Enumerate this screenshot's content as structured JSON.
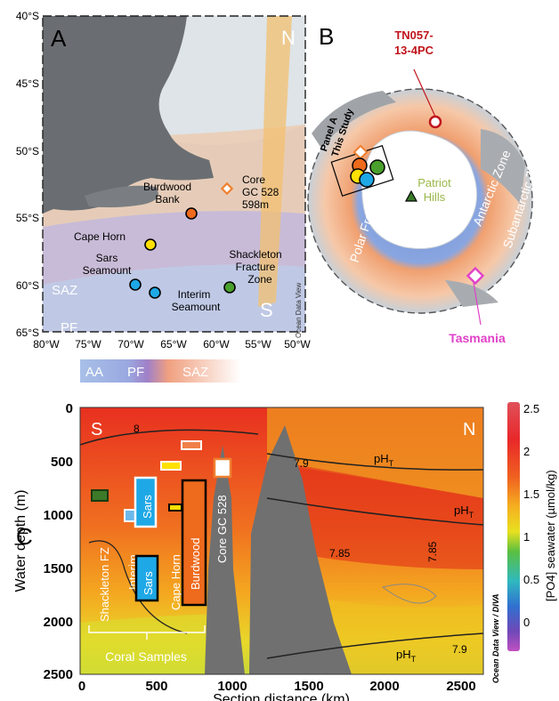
{
  "panels": {
    "a": "A",
    "b": "B",
    "c": "C"
  },
  "map_a": {
    "lat_ticks": [
      "40°S",
      "45°S",
      "50°S",
      "55°S",
      "60°S",
      "65°S"
    ],
    "lon_ticks": [
      "80°W",
      "75°W",
      "70°W",
      "65°W",
      "60°W",
      "55°W",
      "50°W"
    ],
    "corner_n": "N",
    "corner_s": "S",
    "zones": {
      "saz": "SAZ",
      "pf": "PF",
      "aa": "AA"
    },
    "sites": [
      {
        "name": "Burdwood Bank",
        "lines": [
          "Burdwood",
          "Bank"
        ],
        "color": "#ee6a1c"
      },
      {
        "name": "Cape Horn",
        "lines": [
          "Cape Horn"
        ],
        "color": "#ffe000"
      },
      {
        "name": "Sars Seamount",
        "lines": [
          "Sars",
          "Seamount"
        ],
        "color": "#1ea8e6"
      },
      {
        "name": "Interim Seamount",
        "lines": [
          "Interim",
          "Seamount"
        ],
        "color": "#1ea8e6"
      },
      {
        "name": "Shackleton Fracture Zone",
        "lines": [
          "Shackleton",
          "Fracture",
          "Zone"
        ],
        "color": "#4aa02c"
      }
    ],
    "core": {
      "lines": [
        "Core",
        "GC 528",
        "598m"
      ],
      "color": "#f08030"
    },
    "credit": "Ocean Data View"
  },
  "map_b": {
    "core_label": [
      "TN057-",
      "13-4PC"
    ],
    "panel_a_label": [
      "Panel A",
      "This Study"
    ],
    "zones": {
      "subantarctic": "Subantarctic Zone",
      "antarctic": "Antarctic Zone",
      "polar_front": "Polar Front"
    },
    "patriot": [
      "Patriot",
      "Hills"
    ],
    "tasmania": "Tasmania",
    "colors": {
      "core": "#c0141c",
      "tasmania": "#e040c8",
      "patriot": "#9ab84a"
    }
  },
  "section": {
    "zones": [
      "AA",
      "PF",
      "SAZ"
    ],
    "corner_s": "S",
    "corner_n": "N",
    "ylabel": "Water depth (m)",
    "xlabel": "Section distance (km)",
    "colorbar_label": "[PO4] seawater (µmol/kg)",
    "colorbar_ticks": [
      "2.5",
      "2",
      "1.5",
      "1",
      "0.5",
      "0"
    ],
    "credit": "Ocean Data View / DIVA",
    "contours": {
      "c8": "8",
      "c79a": "7.9",
      "c785a": "7.85",
      "c785b": "7.85",
      "c79b": "7.9",
      "ph": "pH"
    },
    "sample_labels": {
      "shackleton": "Shackleton FZ",
      "interim": "Interim",
      "sars_top": "Sars",
      "sars_bottom": "Sars",
      "cape_horn": "Cape Horn",
      "burdwood": "Burdwood",
      "core": "Core GC 528",
      "coral_samples": "Coral Samples"
    }
  },
  "chart_data": [
    {
      "type": "map",
      "xlim": [
        -80,
        -50
      ],
      "ylim": [
        -65,
        -40
      ],
      "xticks": [
        -80,
        -75,
        -70,
        -65,
        -60,
        -55,
        -50
      ],
      "yticks": [
        -40,
        -45,
        -50,
        -55,
        -60,
        -65
      ],
      "points": [
        {
          "label": "Burdwood Bank",
          "lon": -62.2,
          "lat": -54.5
        },
        {
          "label": "Cape Horn",
          "lon": -67.2,
          "lat": -56.9
        },
        {
          "label": "Sars Seamount",
          "lon": -68.8,
          "lat": -59.7
        },
        {
          "label": "Interim Seamount",
          "lon": -66.9,
          "lat": -60.4
        },
        {
          "label": "Shackleton Fracture Zone",
          "lon": -57.4,
          "lat": -60.0
        },
        {
          "label": "Core GC 528",
          "lon": -57.6,
          "lat": -52.8
        }
      ]
    },
    {
      "type": "heatmap",
      "xlabel": "Section distance (km)",
      "ylabel": "Water depth (m)",
      "xlim": [
        0,
        2600
      ],
      "ylim": [
        2500,
        0
      ],
      "xticks": [
        0,
        500,
        1000,
        1500,
        2000,
        2500
      ],
      "yticks": [
        0,
        500,
        1000,
        1500,
        2000,
        2500
      ],
      "colorbar": {
        "label": "[PO4] seawater (µmol/kg)",
        "range": [
          -0.2,
          2.7
        ],
        "ticks": [
          0,
          0.5,
          1,
          1.5,
          2,
          2.5
        ]
      },
      "samples": [
        {
          "label": "Shackleton FZ",
          "x": 110,
          "y": 820,
          "color": "#3c7a2a"
        },
        {
          "label": "Interim",
          "x": 350,
          "y": 1070,
          "color": "#6db8ea"
        },
        {
          "label": "Sars",
          "x": 440,
          "y": 950,
          "color": "#1ea8e6"
        },
        {
          "label": "Sars",
          "x": 455,
          "y": 1550,
          "color": "#1ea8e6"
        },
        {
          "label": "Cape Horn",
          "x": 570,
          "y": 530,
          "color": "#ffe000"
        },
        {
          "label": "Cape Horn",
          "x": 620,
          "y": 1020,
          "color": "#ffe000"
        },
        {
          "label": "Burdwood",
          "x": 730,
          "y": 1200,
          "color": "#ee6a1c"
        },
        {
          "label": "Burdwood",
          "x": 680,
          "y": 320,
          "color": "#ee6a1c"
        },
        {
          "label": "Core GC 528",
          "x": 900,
          "y": 600,
          "color": "#f08030"
        }
      ]
    }
  ]
}
